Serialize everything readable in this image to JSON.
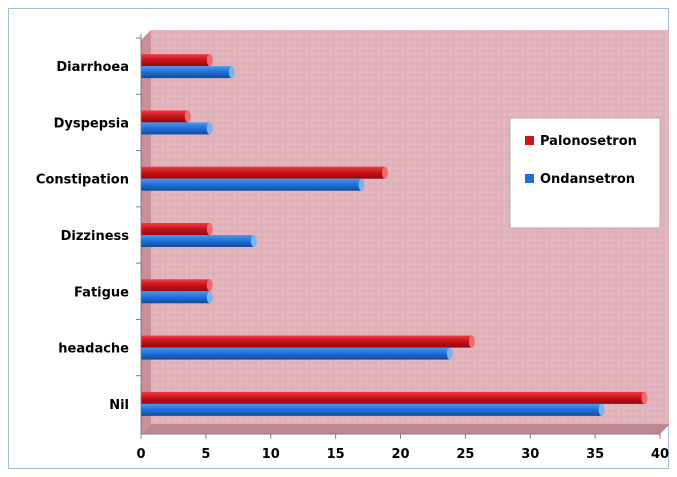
{
  "chart_data": {
    "type": "bar",
    "orientation": "horizontal",
    "categories": [
      "Diarrhoea",
      "Dyspepsia",
      "Constipation",
      "Dizziness",
      "Fatigue",
      "headache",
      "Nil"
    ],
    "series": [
      {
        "name": "Palonosetron",
        "color": "#d0141c",
        "values": [
          5.3,
          3.6,
          18.8,
          5.3,
          5.3,
          25.5,
          38.8
        ]
      },
      {
        "name": "Ondansetron",
        "color": "#1e6fd6",
        "values": [
          7.0,
          5.3,
          17.0,
          8.7,
          5.3,
          23.8,
          35.5
        ]
      }
    ],
    "xlim": [
      0,
      40
    ],
    "xticks": [
      "0",
      "5",
      "10",
      "15",
      "20",
      "25",
      "30",
      "35",
      "40"
    ],
    "grid": false,
    "legend_position": "right",
    "plot_background": "#e2b3bb"
  }
}
